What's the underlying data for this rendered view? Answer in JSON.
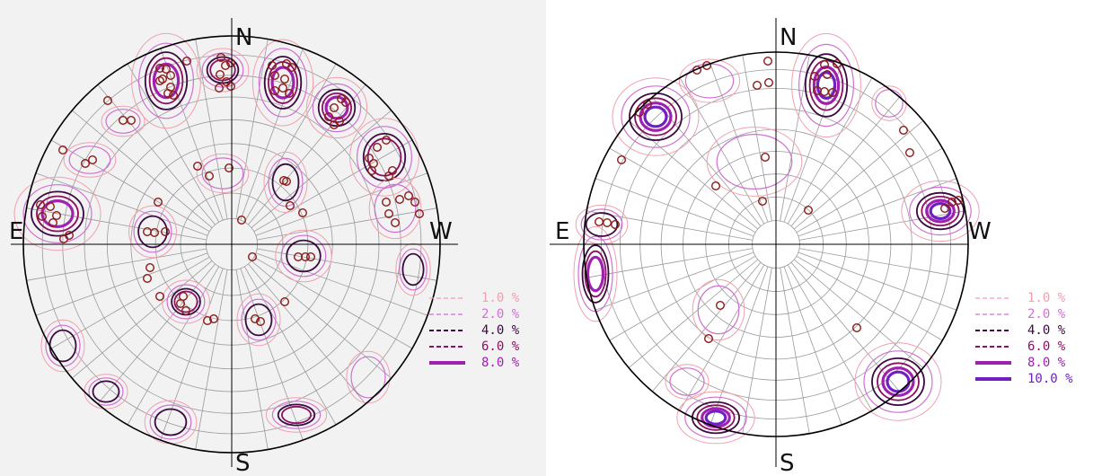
{
  "colors": {
    "grid": "#9a9a9a",
    "outline": "#000000",
    "pole": "#8b1a1a",
    "c1": "#f0a0b0",
    "c2": "#d070d0",
    "c4": "#3a0a40",
    "c6": "#8a1060",
    "c8": "#a020b0",
    "c10": "#7020c0"
  },
  "left_plot": {
    "directions": {
      "n": "N",
      "s": "S",
      "e": "E",
      "w": "W"
    },
    "legend": [
      {
        "label": "1.0 %",
        "color": "#f0a0b0",
        "style": "dashed-thin"
      },
      {
        "label": "2.0 %",
        "color": "#d070d0",
        "style": "dashed-thin"
      },
      {
        "label": "4.0 %",
        "color": "#3a0a40",
        "style": "dashed"
      },
      {
        "label": "6.0 %",
        "color": "#8a1060",
        "style": "dashed"
      },
      {
        "label": "8.0 %",
        "color": "#a020b0",
        "style": "solid-thick"
      }
    ]
  },
  "right_plot": {
    "directions": {
      "n": "N",
      "s": "S",
      "e": "E",
      "w": "W"
    },
    "legend": [
      {
        "label": "1.0 %",
        "color": "#f0a0b0",
        "style": "dashed-thin"
      },
      {
        "label": "2.0 %",
        "color": "#d070d0",
        "style": "dashed-thin"
      },
      {
        "label": "4.0 %",
        "color": "#3a0a40",
        "style": "dashed"
      },
      {
        "label": "6.0 %",
        "color": "#8a1060",
        "style": "dashed"
      },
      {
        "label": "8.0 %",
        "color": "#a020b0",
        "style": "solid-thick"
      },
      {
        "label": "10.0 %",
        "color": "#7020c0",
        "style": "solid-thick"
      }
    ]
  }
}
